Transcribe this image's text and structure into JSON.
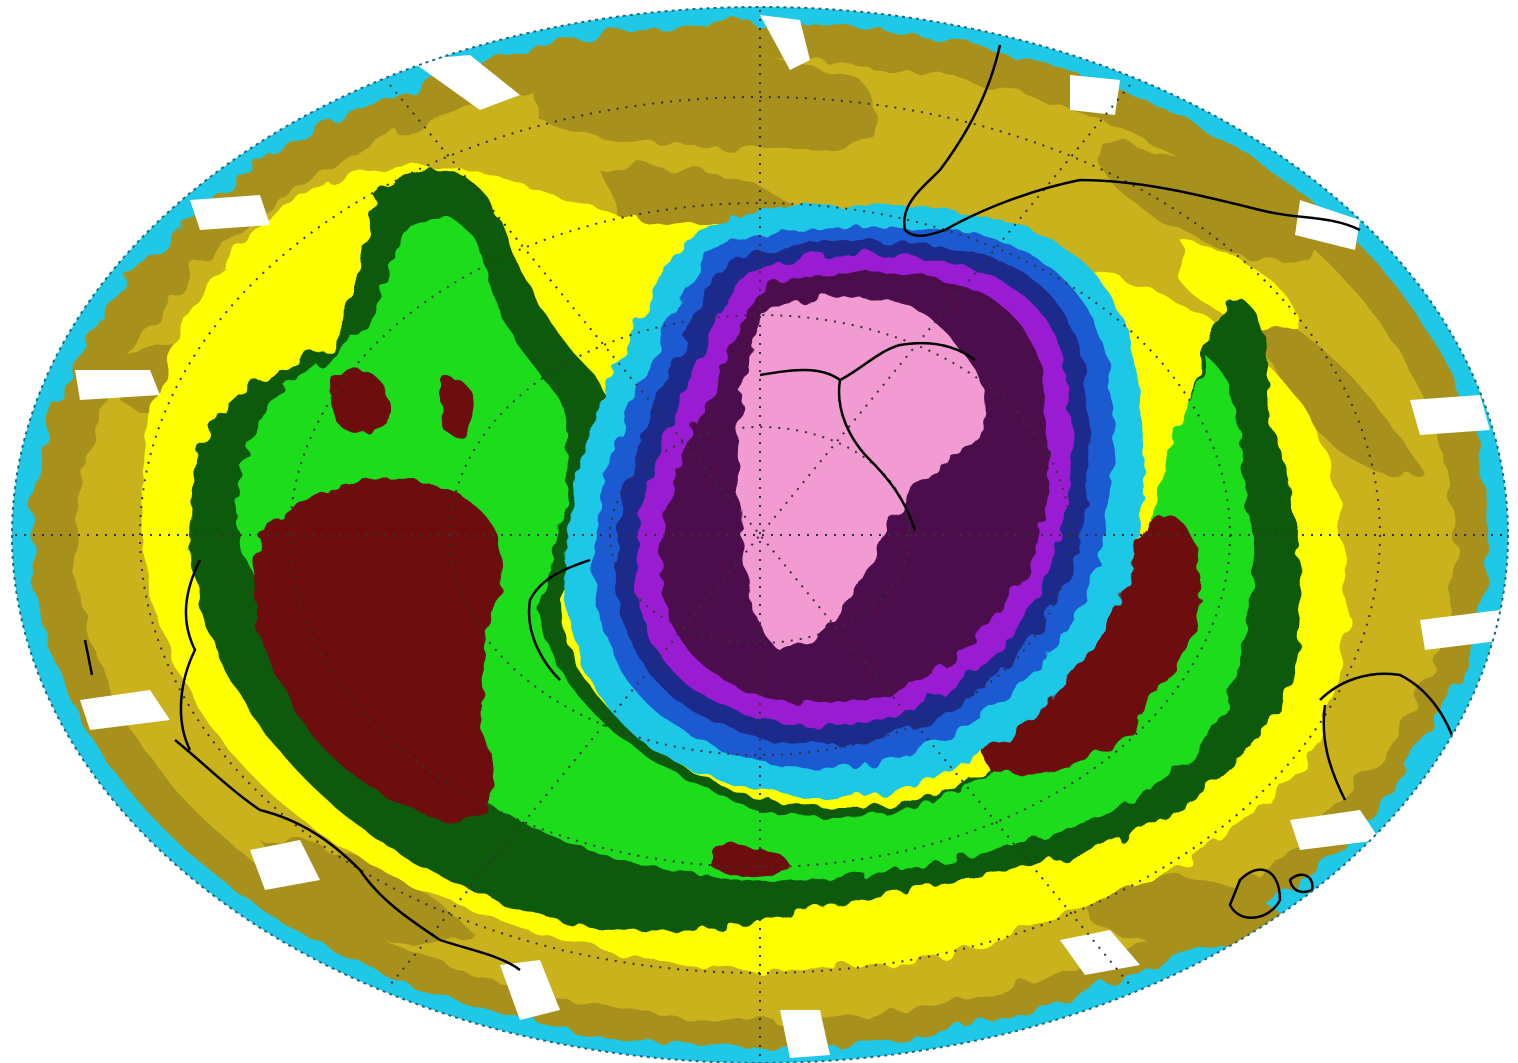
{
  "map": {
    "projection": "polar-orthographic",
    "hemisphere": "north",
    "title": "",
    "labels": [],
    "legend": [],
    "colors": {
      "background": "#ffffff",
      "ocean_rim": "#2ed2e6",
      "olive": "#a8901e",
      "mustard": "#c9b21d",
      "yellow": "#ffff00",
      "dark_green": "#0b5a0b",
      "green": "#1edc1e",
      "maroon": "#6e0808",
      "cyan": "#1ec8e6",
      "blue": "#1e5ad2",
      "navy": "#1e2a8c",
      "purple": "#9a1ed2",
      "dark_purple": "#4c0a4c",
      "pink": "#f29ad2",
      "coastline": "#000000",
      "gridline": "#333333",
      "data_gap": "#ffffff"
    },
    "layers": [
      {
        "name": "ocean-rim",
        "color": "cyan"
      },
      {
        "name": "outer-olive-band",
        "color": "olive"
      },
      {
        "name": "mustard-band",
        "color": "mustard"
      },
      {
        "name": "yellow-band",
        "color": "yellow"
      },
      {
        "name": "dark-green-band",
        "color": "dark_green"
      },
      {
        "name": "green-band",
        "color": "green"
      },
      {
        "name": "maroon-patches",
        "color": "maroon"
      },
      {
        "name": "vortex-cyan-ring",
        "color": "cyan"
      },
      {
        "name": "vortex-blue-ring",
        "color": "blue"
      },
      {
        "name": "vortex-purple-ring",
        "color": "purple"
      },
      {
        "name": "vortex-dark-purple-core",
        "color": "dark_purple"
      },
      {
        "name": "vortex-pink-center",
        "color": "pink"
      }
    ]
  }
}
